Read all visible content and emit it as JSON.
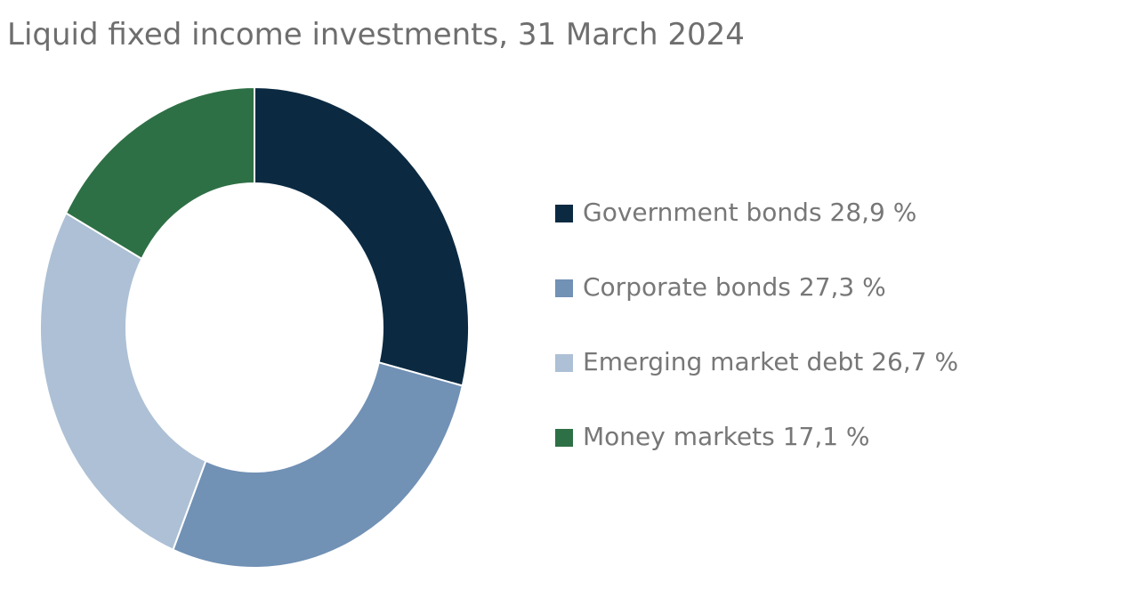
{
  "chart_data": {
    "type": "donut",
    "title": "Liquid fixed income investments, 31 March 2024",
    "categories": [
      "Government bonds",
      "Corporate bonds",
      "Emerging market debt",
      "Money markets"
    ],
    "values": [
      28.9,
      27.3,
      26.7,
      17.1
    ],
    "value_labels": [
      "28,9 %",
      "27,3 %",
      "26,7 %",
      "17,1 %"
    ],
    "colors": [
      "#0b2a42",
      "#7191b5",
      "#adc0d5",
      "#2e7045"
    ],
    "legend": "right"
  }
}
